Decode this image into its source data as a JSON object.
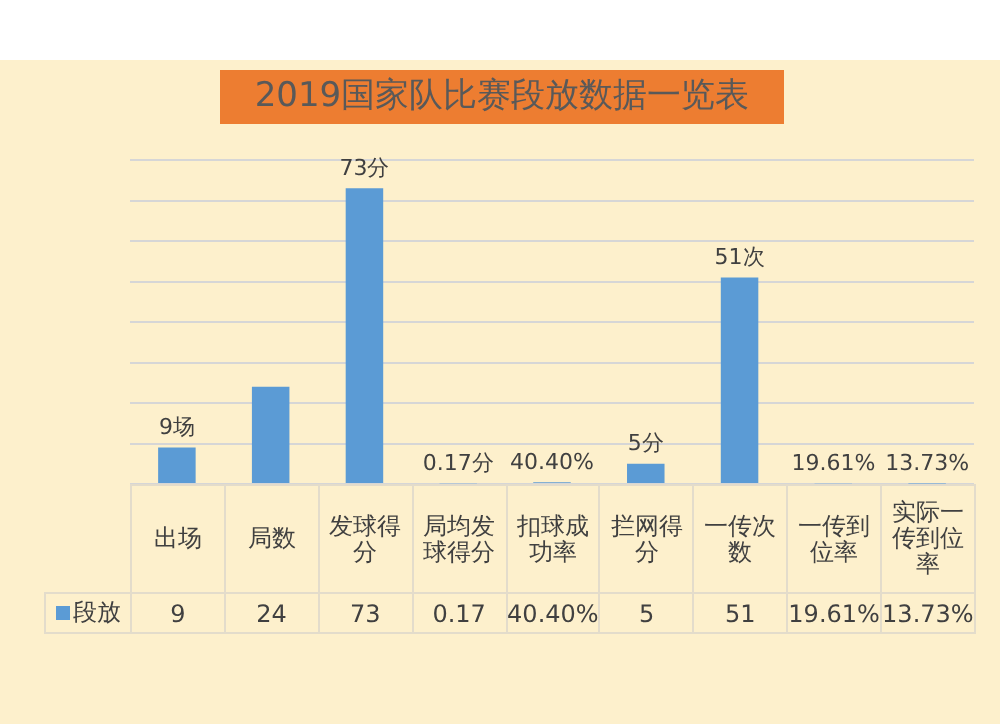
{
  "chart_data": {
    "type": "bar",
    "title": "2019国家队比赛段放数据一览表",
    "categories": [
      "出场",
      "局数",
      "发球得分",
      "局均发球得分",
      "扣球成功率",
      "拦网得分",
      "一传次数",
      "一传到位率",
      "实际一传到位率"
    ],
    "series": [
      {
        "name": "段放",
        "color": "#5b9bd5",
        "values": [
          9,
          24,
          73,
          0.17,
          0.404,
          5,
          51,
          0.1961,
          0.1373
        ],
        "value_labels": [
          "9",
          "24",
          "73",
          "0.17",
          "40.40%",
          "5",
          "51",
          "19.61%",
          "13.73%"
        ]
      }
    ],
    "ylim": [
      0,
      80
    ],
    "yticks": [
      {
        "value": 0,
        "label": null
      },
      {
        "value": 10,
        "label": null
      },
      {
        "value": 20,
        "label": null
      },
      {
        "value": 30,
        "label": null
      },
      {
        "value": 40,
        "label": null
      },
      {
        "value": 50,
        "label": null
      },
      {
        "value": 60,
        "label": null
      },
      {
        "value": 70,
        "label": null
      },
      {
        "value": 80,
        "label": null
      }
    ],
    "grid": "y",
    "legend": "bottom",
    "annotations": [
      {
        "text": "9场",
        "x": "出场",
        "y": 9
      },
      {
        "text": "73分",
        "x": "发球得分",
        "y": 73
      },
      {
        "text": "0.17分",
        "x": "局均发球得分",
        "y": 0.17
      },
      {
        "text": "40.40%",
        "x": "扣球成功率",
        "y": 0.404
      },
      {
        "text": "5分",
        "x": "拦网得分",
        "y": 5
      },
      {
        "text": "51次",
        "x": "一传次数",
        "y": 51
      },
      {
        "text": "19.61%",
        "x": "一传到位率",
        "y": 0.1961
      },
      {
        "text": "13.73%",
        "x": "实际一传到位率",
        "y": 0.1373
      }
    ]
  }
}
